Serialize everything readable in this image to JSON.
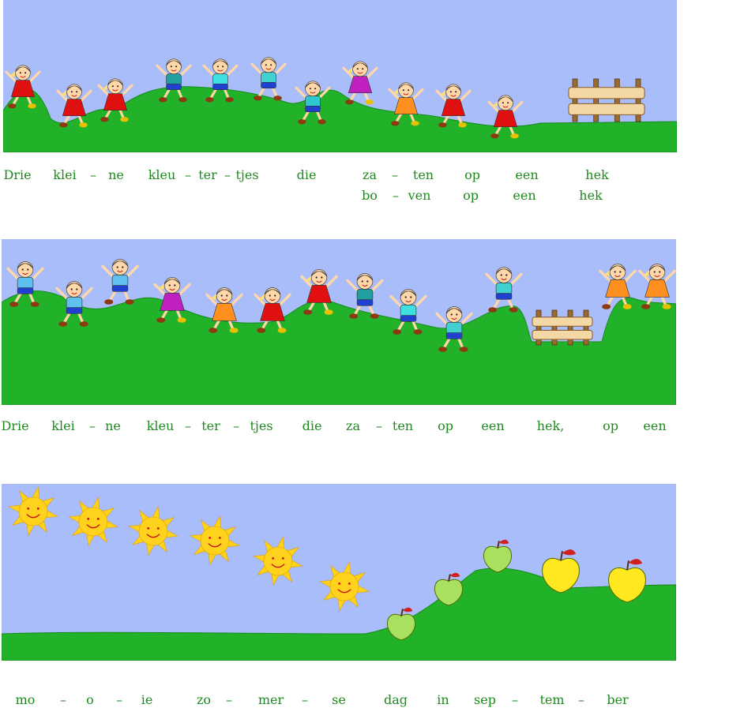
{
  "colors": {
    "sky": "#aabdfb",
    "grass": "#22b22a",
    "grass_dark": "#168a1c",
    "text": "#1e8a1e",
    "sun": "#ffd21e",
    "apple_green": "#a8e060",
    "apple_yellow": "#ffe820",
    "fence": "#f3d8a6"
  },
  "rows": [
    {
      "line1": [
        "Drie",
        "klei",
        "–",
        "ne",
        "kleu",
        "–",
        "ter",
        "–",
        "tjes",
        "die",
        "za",
        "–",
        "ten",
        "op",
        "een",
        "hek"
      ],
      "line2": [
        "bo",
        "–",
        "ven",
        "op",
        "een",
        "hek"
      ]
    },
    {
      "line1": [
        "Drie",
        "klei",
        "–",
        "ne",
        "kleu",
        "–",
        "ter",
        "–",
        "tjes",
        "die",
        "za",
        "–",
        "ten",
        "op",
        "een",
        "hek,",
        "op",
        "een"
      ]
    },
    {
      "line1": [
        "mo",
        "–",
        "o",
        "–",
        "ie",
        "zo",
        "–",
        "mer",
        "–",
        "se",
        "dag",
        "in",
        "sep",
        "–",
        "tem",
        "–",
        "ber"
      ]
    }
  ],
  "icons": {
    "boy": "boy-figure-icon",
    "girl": "girl-figure-icon",
    "fence": "fence-icon",
    "sun": "sun-icon",
    "apple": "apple-icon"
  }
}
